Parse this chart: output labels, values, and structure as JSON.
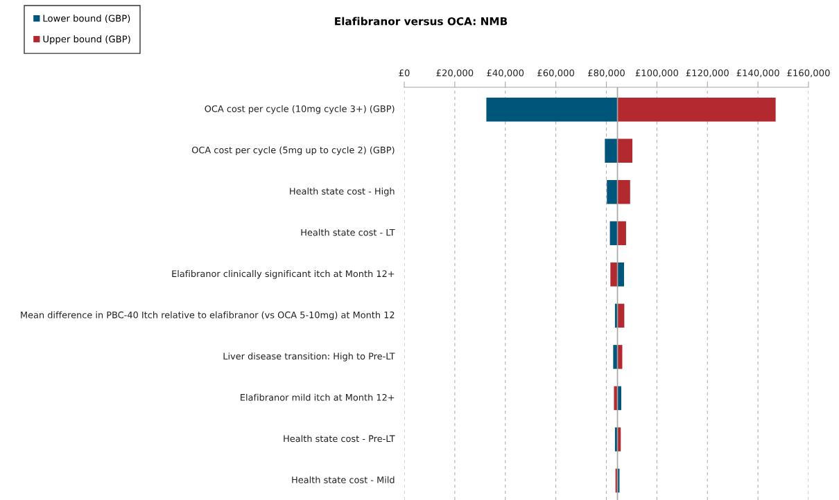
{
  "chart_data": {
    "type": "bar",
    "orientation": "horizontal",
    "title": "Elafibranor versus OCA: NMB",
    "categories": [
      "OCA cost per cycle (10mg cycle 3+) (GBP)",
      "OCA cost per cycle (5mg up to cycle 2) (GBP)",
      "Health state cost - High",
      "Health state cost - LT",
      "Elafibranor clinically significant itch at Month 12+",
      "Mean difference in PBC-40 Itch relative to elafibranor (vs OCA 5-10mg) at Month 12",
      "Liver disease transition: High to Pre-LT",
      "Elafibranor mild itch at Month 12+",
      "Health state cost - Pre-LT",
      "Health state cost - Mild"
    ],
    "series": [
      {
        "name": "Lower bound (GBP)",
        "color": "#00557a",
        "base": [
          84400,
          84400,
          84400,
          84400,
          84400,
          84400,
          84400,
          84400,
          84400,
          84400
        ],
        "values": [
          -51900,
          -5000,
          -4200,
          -3000,
          2600,
          -1000,
          -1700,
          1500,
          -1000,
          800
        ]
      },
      {
        "name": "Upper bound (GBP)",
        "color": "#b22a30",
        "base": [
          84400,
          84400,
          84400,
          84400,
          84400,
          84400,
          84400,
          84400,
          84400,
          84400
        ],
        "values": [
          62600,
          5900,
          5000,
          3400,
          -2800,
          2700,
          1900,
          -1400,
          1300,
          -800
        ]
      }
    ],
    "xlim": [
      0,
      160000
    ],
    "xticks": [
      {
        "value": 0,
        "label": "£0"
      },
      {
        "value": 20000,
        "label": "£20,000"
      },
      {
        "value": 40000,
        "label": "£40,000"
      },
      {
        "value": 60000,
        "label": "£60,000"
      },
      {
        "value": 80000,
        "label": "£80,000"
      },
      {
        "value": 100000,
        "label": "£100,000"
      },
      {
        "value": 120000,
        "label": "£120,000"
      },
      {
        "value": 140000,
        "label": "£140,000"
      },
      {
        "value": 160000,
        "label": "£160,000"
      }
    ],
    "ref_lines": [
      {
        "axis": "x",
        "value": 84400,
        "color": "#a6a6a6"
      }
    ],
    "grid": "x",
    "legend": "top left"
  }
}
